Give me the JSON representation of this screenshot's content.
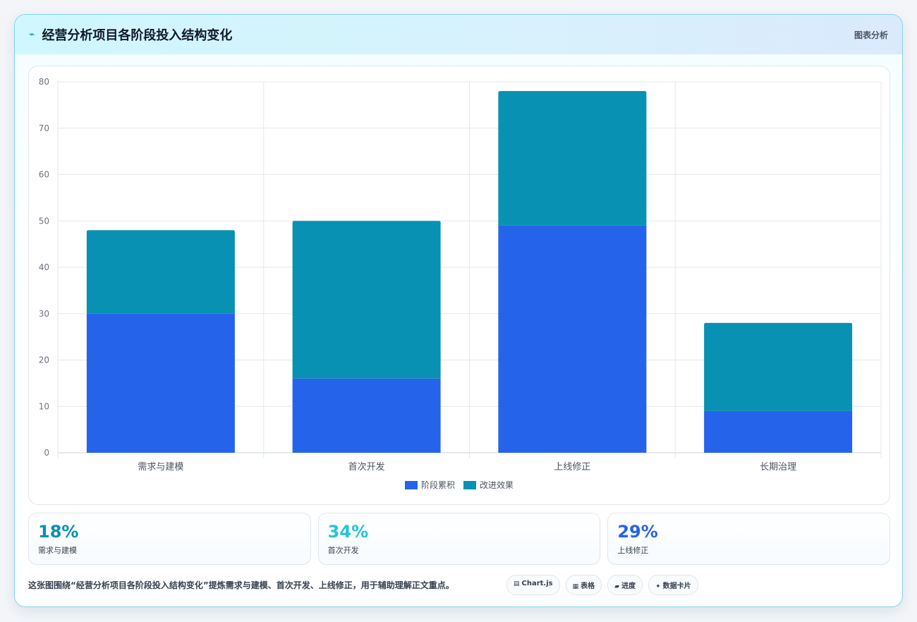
{
  "header": {
    "icon": "chart-spark-icon",
    "title": "经营分析项目各阶段投入结构变化",
    "tag": "图表分析"
  },
  "colors": {
    "series1": "#2563eb",
    "series2": "#0891b2",
    "accent": "#22c5d8"
  },
  "chart_data": {
    "type": "bar",
    "stacked": true,
    "categories": [
      "需求与建模",
      "首次开发",
      "上线修正",
      "长期治理"
    ],
    "series": [
      {
        "name": "阶段累积",
        "color": "#2563eb",
        "values": [
          30,
          16,
          49,
          9
        ]
      },
      {
        "name": "改进效果",
        "color": "#0891b2",
        "values": [
          18,
          34,
          29,
          19
        ]
      }
    ],
    "ylim": [
      0,
      80
    ],
    "yticks": [
      0,
      10,
      20,
      30,
      40,
      50,
      60,
      70,
      80
    ],
    "grid": true,
    "legend": "bottom"
  },
  "stats": [
    {
      "value": "18%",
      "label": "需求与建模",
      "color": "#0891b2"
    },
    {
      "value": "34%",
      "label": "首次开发",
      "color": "#22c5d8"
    },
    {
      "value": "29%",
      "label": "上线修正",
      "color": "#2563eb"
    }
  ],
  "footer": {
    "text": "这张图围绕“经营分析项目各阶段投入结构变化”提炼需求与建模、首次开发、上线修正，用于辅助理解正文重点。",
    "chips": [
      {
        "icon": "▤",
        "label": "Chart.js"
      },
      {
        "icon": "▦",
        "label": "表格"
      },
      {
        "icon": "▰",
        "label": "进度"
      },
      {
        "icon": "✦",
        "label": "数据卡片"
      }
    ]
  }
}
